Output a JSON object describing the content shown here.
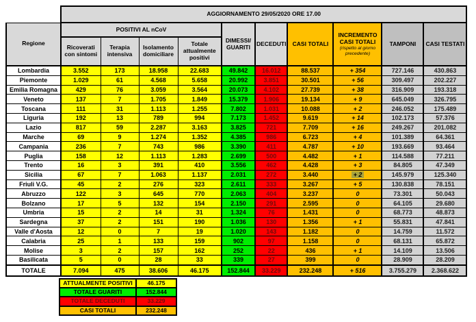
{
  "header": {
    "title": "AGGIORNAMENTO 29/05/2020 ORE 17.00",
    "region_col": "Regione",
    "positivi_group": "POSITIVI AL nCoV",
    "col_ricoverati": "Ricoverati con sintomi",
    "col_terapia": "Terapia intensiva",
    "col_isolamento": "Isolamento domiciliare",
    "col_attualmente": "Totale attualmente positivi",
    "col_dimessi": "DIMESSI/ GUARITI",
    "col_deceduti": "DECEDUTI",
    "col_casi_totali": "CASI TOTALI",
    "col_incremento": "INCREMENTO CASI TOTALI",
    "col_incremento_note": "(rispetto al giorno precedente)",
    "col_tamponi": "TAMPONI",
    "col_casi_testati": "CASI TESTATI"
  },
  "chart_data": {
    "type": "table",
    "title": "AGGIORNAMENTO 29/05/2020 ORE 17.00",
    "columns": [
      "Regione",
      "Ricoverati con sintomi",
      "Terapia intensiva",
      "Isolamento domiciliare",
      "Totale attualmente positivi",
      "DIMESSI/GUARITI",
      "DECEDUTI",
      "CASI TOTALI",
      "INCREMENTO CASI TOTALI (rispetto al giorno precedente)",
      "TAMPONI",
      "CASI TESTATI"
    ],
    "rows": [
      [
        "Lombardia",
        "3.552",
        "173",
        "18.958",
        "22.683",
        "49.842",
        "16.012",
        "88.537",
        "+ 354",
        "727.146",
        "430.863"
      ],
      [
        "Piemonte",
        "1.029",
        "61",
        "4.568",
        "5.658",
        "20.992",
        "3.851",
        "30.501",
        "+ 56",
        "309.497",
        "202.227"
      ],
      [
        "Emilia Romagna",
        "429",
        "76",
        "3.059",
        "3.564",
        "20.073",
        "4.102",
        "27.739",
        "+ 38",
        "316.909",
        "193.318"
      ],
      [
        "Veneto",
        "137",
        "7",
        "1.705",
        "1.849",
        "15.379",
        "1.906",
        "19.134",
        "+ 9",
        "645.049",
        "326.795"
      ],
      [
        "Toscana",
        "111",
        "31",
        "1.113",
        "1.255",
        "7.802",
        "1.031",
        "10.088",
        "+ 2",
        "246.052",
        "175.489"
      ],
      [
        "Liguria",
        "192",
        "13",
        "789",
        "994",
        "7.173",
        "1.452",
        "9.619",
        "+ 14",
        "102.173",
        "57.376"
      ],
      [
        "Lazio",
        "817",
        "59",
        "2.287",
        "3.163",
        "3.825",
        "721",
        "7.709",
        "+ 16",
        "249.267",
        "201.082"
      ],
      [
        "Marche",
        "69",
        "9",
        "1.274",
        "1.352",
        "4.385",
        "986",
        "6.723",
        "+ 4",
        "101.389",
        "64.361"
      ],
      [
        "Campania",
        "236",
        "7",
        "743",
        "986",
        "3.390",
        "411",
        "4.787",
        "+ 10",
        "193.669",
        "93.464"
      ],
      [
        "Puglia",
        "158",
        "12",
        "1.113",
        "1.283",
        "2.699",
        "500",
        "4.482",
        "+ 1",
        "114.588",
        "77.211"
      ],
      [
        "Trento",
        "16",
        "3",
        "391",
        "410",
        "3.556",
        "462",
        "4.428",
        "+ 3",
        "84.805",
        "47.349"
      ],
      [
        "Sicilia",
        "67",
        "7",
        "1.063",
        "1.137",
        "2.031",
        "272",
        "3.440",
        "+ 2",
        "145.979",
        "125.340"
      ],
      [
        "Friuli V.G.",
        "45",
        "2",
        "276",
        "323",
        "2.611",
        "333",
        "3.267",
        "+ 5",
        "130.838",
        "78.151"
      ],
      [
        "Abruzzo",
        "122",
        "3",
        "645",
        "770",
        "2.063",
        "404",
        "3.237",
        "0",
        "73.301",
        "50.043"
      ],
      [
        "Bolzano",
        "17",
        "5",
        "132",
        "154",
        "2.150",
        "291",
        "2.595",
        "0",
        "64.105",
        "29.680"
      ],
      [
        "Umbria",
        "15",
        "2",
        "14",
        "31",
        "1.324",
        "76",
        "1.431",
        "0",
        "68.773",
        "48.873"
      ],
      [
        "Sardegna",
        "37",
        "2",
        "151",
        "190",
        "1.036",
        "130",
        "1.356",
        "+ 1",
        "55.831",
        "47.841"
      ],
      [
        "Valle d'Aosta",
        "12",
        "0",
        "7",
        "19",
        "1.020",
        "143",
        "1.182",
        "0",
        "14.759",
        "11.572"
      ],
      [
        "Calabria",
        "25",
        "1",
        "133",
        "159",
        "902",
        "97",
        "1.158",
        "0",
        "68.131",
        "65.872"
      ],
      [
        "Molise",
        "3",
        "2",
        "157",
        "162",
        "252",
        "22",
        "436",
        "+ 1",
        "14.109",
        "13.506"
      ],
      [
        "Basilicata",
        "5",
        "0",
        "28",
        "33",
        "339",
        "27",
        "399",
        "0",
        "28.909",
        "28.209"
      ]
    ],
    "totals": [
      "TOTALE",
      "7.094",
      "475",
      "38.606",
      "46.175",
      "152.844",
      "33.229",
      "232.248",
      "+ 516",
      "3.755.279",
      "2.368.622"
    ],
    "highlight_cell": {
      "row": 11,
      "col": 8
    }
  },
  "legend": {
    "items": [
      {
        "label": "ATTUALMENTE POSITIVI",
        "value": "46.175",
        "color": "#ffff00"
      },
      {
        "label": "TOTALE GUARITI",
        "value": "152.844",
        "color": "#00ee00"
      },
      {
        "label": "TOTALE DECEDUTI",
        "value": "33.229",
        "color": "#ff0000"
      },
      {
        "label": "CASI TOTALI",
        "value": "232.248",
        "color": "#ffc000"
      }
    ]
  },
  "colors": {
    "yellow": "#ffff00",
    "green": "#00ee00",
    "red": "#ff0000",
    "red_text": "#6e0b0b",
    "orange": "#ffc000",
    "grey_header_light": "#d9d9d9",
    "grey_header_dark": "#bfbfbf",
    "grey_data": "#d2d2d2",
    "highlight_olive": "#a9a43c"
  }
}
